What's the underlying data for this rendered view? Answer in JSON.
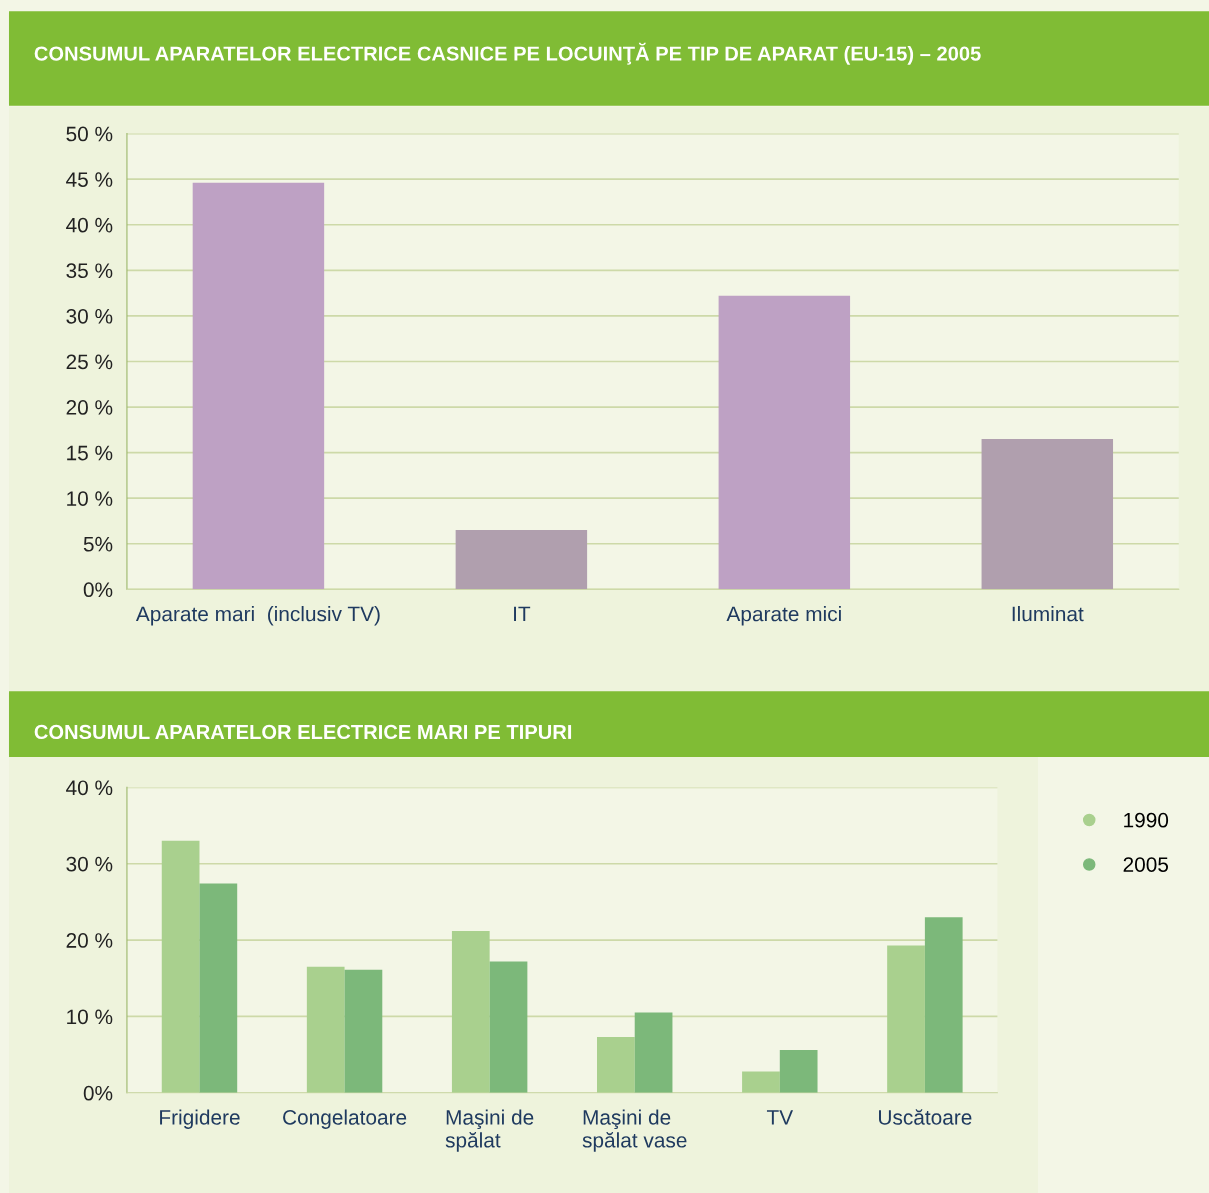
{
  "chart_data": [
    {
      "type": "bar",
      "title": "CONSUMUL APARATELOR ELECTRICE CASNICE PE LOCUINŢĂ PE TIP DE APARAT (EU-15) – 2005",
      "categories": [
        "Aparate mari  (inclusiv TV)",
        "IT",
        "Aparate mici",
        "Iluminat"
      ],
      "values": [
        44.6,
        6.5,
        32.2,
        16.5
      ],
      "colors": [
        "#bea1c4",
        "#b09fae",
        "#bea1c4",
        "#b09fae"
      ],
      "ylim": [
        0,
        50
      ],
      "yticks": [
        {
          "value": 0,
          "label": "0%"
        },
        {
          "value": 5,
          "label": "5%"
        },
        {
          "value": 10,
          "label": "10 %"
        },
        {
          "value": 15,
          "label": "15 %"
        },
        {
          "value": 20,
          "label": "20 %"
        },
        {
          "value": 25,
          "label": "25 %"
        },
        {
          "value": 30,
          "label": "30 %"
        },
        {
          "value": 35,
          "label": "35 %"
        },
        {
          "value": 40,
          "label": "40 %"
        },
        {
          "value": 45,
          "label": "45 %"
        },
        {
          "value": 50,
          "label": "50 %"
        }
      ],
      "grid": "y"
    },
    {
      "type": "bar",
      "title": "CONSUMUL APARATELOR ELECTRICE MARI PE TIPURI",
      "categories": [
        "Frigidere",
        "Congelatoare",
        "Maşini de\nspălat",
        "Maşini de\nspălat vase",
        "TV",
        "Uscătoare"
      ],
      "series": [
        {
          "name": "1990",
          "color": "#a9d08e",
          "values": [
            33.0,
            16.5,
            21.2,
            7.3,
            2.8,
            19.3
          ]
        },
        {
          "name": "2005",
          "color": "#7cb87a",
          "values": [
            27.4,
            16.1,
            17.2,
            10.5,
            5.6,
            23.0
          ]
        }
      ],
      "ylim": [
        0,
        40
      ],
      "yticks": [
        {
          "value": 0,
          "label": "0%"
        },
        {
          "value": 10,
          "label": "10 %"
        },
        {
          "value": 20,
          "label": "20 %"
        },
        {
          "value": 30,
          "label": "30 %"
        },
        {
          "value": 40,
          "label": "40 %"
        }
      ],
      "grid": "y",
      "legend": "right"
    }
  ]
}
